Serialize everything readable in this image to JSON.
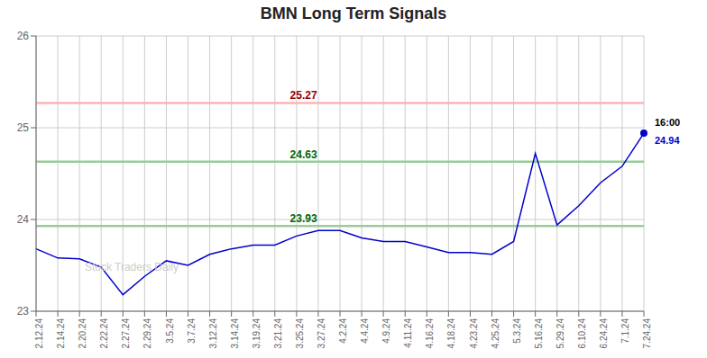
{
  "chart_data": {
    "type": "line",
    "title": "BMN Long Term Signals",
    "categories": [
      "2.12.24",
      "2.14.24",
      "2.20.24",
      "2.22.24",
      "2.27.24",
      "2.29.24",
      "3.5.24",
      "3.7.24",
      "3.12.24",
      "3.14.24",
      "3.19.24",
      "3.21.24",
      "3.25.24",
      "3.27.24",
      "4.2.24",
      "4.4.24",
      "4.9.24",
      "4.11.24",
      "4.16.24",
      "4.18.24",
      "4.23.24",
      "4.25.24",
      "5.3.24",
      "5.16.24",
      "5.29.24",
      "6.10.24",
      "6.24.24",
      "7.1.24",
      "7.24.24"
    ],
    "values": [
      23.68,
      23.58,
      23.57,
      23.48,
      23.18,
      23.38,
      23.55,
      23.5,
      23.62,
      23.68,
      23.72,
      23.72,
      23.82,
      23.88,
      23.88,
      23.8,
      23.76,
      23.76,
      23.7,
      23.64,
      23.64,
      23.62,
      23.76,
      24.72,
      23.94,
      24.15,
      24.4,
      24.58,
      24.94
    ],
    "color": "#0000cc",
    "ylim": [
      23.0,
      26.0
    ],
    "yticks": [
      23,
      24,
      25,
      26
    ],
    "grid": true,
    "hlines": [
      {
        "value": 25.27,
        "label": "25.27",
        "color": "#ffb3b3",
        "label_color": "#990000"
      },
      {
        "value": 24.63,
        "label": "24.63",
        "color": "#99cc99",
        "label_color": "#006600"
      },
      {
        "value": 23.93,
        "label": "23.93",
        "color": "#99cc99",
        "label_color": "#006600"
      }
    ],
    "annotations": [
      {
        "x": "7.24.24",
        "y": 24.94,
        "text": "16:00",
        "color": "#000000"
      },
      {
        "x": "7.24.24",
        "y": 24.94,
        "text": "24.94",
        "color": "#0000cc",
        "marker": "circle"
      }
    ],
    "watermark": "Stock Traders Daily"
  }
}
